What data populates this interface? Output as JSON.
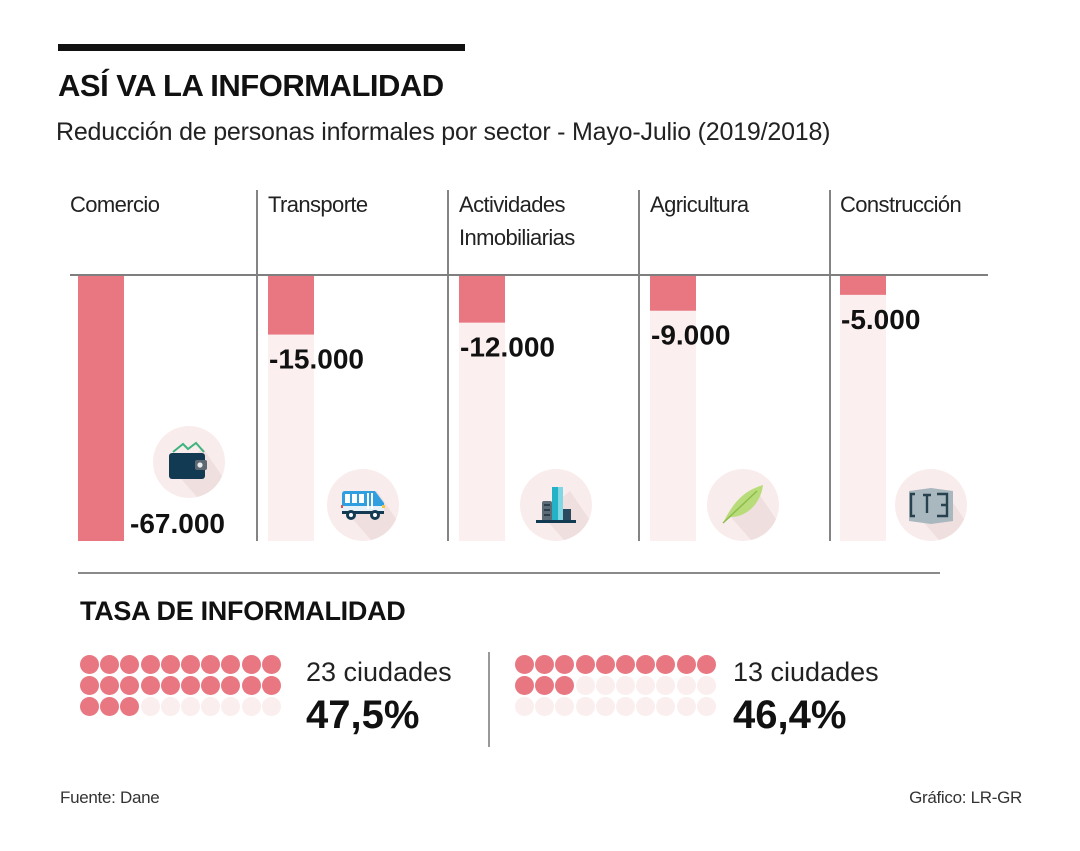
{
  "header": {
    "title": "ASÍ VA LA INFORMALIDAD",
    "subtitle": "Reducción de personas informales por sector - Mayo-Julio (2019/2018)"
  },
  "colors": {
    "bar": "#e87782",
    "bar_track": "#fcefef",
    "icon_circle": "#f9ecec",
    "dot_filled": "#e87782",
    "dot_empty": "#fbeeee",
    "gridline": "#7f7f7f"
  },
  "chart_data": {
    "type": "bar",
    "orientation": "vertical-downward",
    "title": "Reducción de personas informales por sector - Mayo-Julio (2019/2018)",
    "xlabel": "",
    "ylabel": "",
    "ylim": [
      -67000,
      0
    ],
    "grid": false,
    "legend": "none",
    "categories": [
      "Comercio",
      "Transporte",
      "Actividades Inmobiliarias",
      "Agricultura",
      "Construcción"
    ],
    "category_lines": [
      [
        "Comercio"
      ],
      [
        "Transporte"
      ],
      [
        "Actividades",
        "Inmobiliarias"
      ],
      [
        "Agricultura"
      ],
      [
        "Construcción"
      ]
    ],
    "values": [
      -67000,
      -15000,
      -12000,
      -9000,
      -5000
    ],
    "data_labels": [
      "-67.000",
      "-15.000",
      "-12.000",
      "-9.000",
      "-5.000"
    ],
    "icons": [
      "wallet-icon",
      "bus-icon",
      "buildings-icon",
      "leaf-icon",
      "floor-plan-icon"
    ]
  },
  "rate_section": {
    "title": "TASA DE INFORMALIDAD",
    "items": [
      {
        "caption": "23 ciudades",
        "value": "47,5%",
        "percent": 47.5,
        "dots_total": 30,
        "dots_filled": 23
      },
      {
        "caption": "13 ciudades",
        "value": "46,4%",
        "percent": 46.4,
        "dots_total": 30,
        "dots_filled": 13
      }
    ]
  },
  "footer": {
    "source": "Fuente: Dane",
    "credit": "Gráfico: LR-GR"
  }
}
